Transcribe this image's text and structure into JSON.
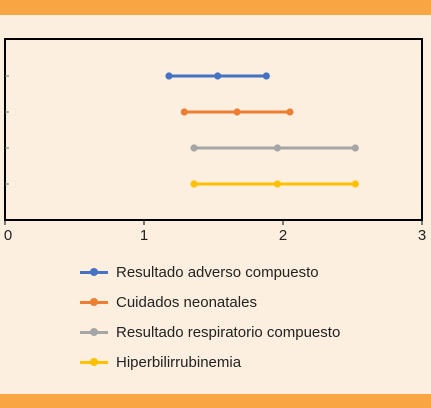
{
  "chart_data": {
    "type": "line",
    "title": "",
    "xlabel": "",
    "ylabel": "",
    "xlim": [
      0,
      3
    ],
    "xticks": [
      "0",
      "1",
      "2",
      "3"
    ],
    "grid": false,
    "legend_position": "bottom",
    "series": [
      {
        "name": "Resultado adverso compuesto",
        "color": "#4472c4",
        "low": 1.18,
        "point": 1.53,
        "high": 1.88
      },
      {
        "name": "Cuidados neonatales",
        "color": "#ed7d31",
        "low": 1.29,
        "point": 1.67,
        "high": 2.05
      },
      {
        "name": "Resultado respiratorio compuesto",
        "color": "#a5a5a5",
        "low": 1.36,
        "point": 1.96,
        "high": 2.52
      },
      {
        "name": "Hiperbilirrubinemia",
        "color": "#ffc000",
        "low": 1.36,
        "point": 1.96,
        "high": 2.52
      }
    ]
  }
}
